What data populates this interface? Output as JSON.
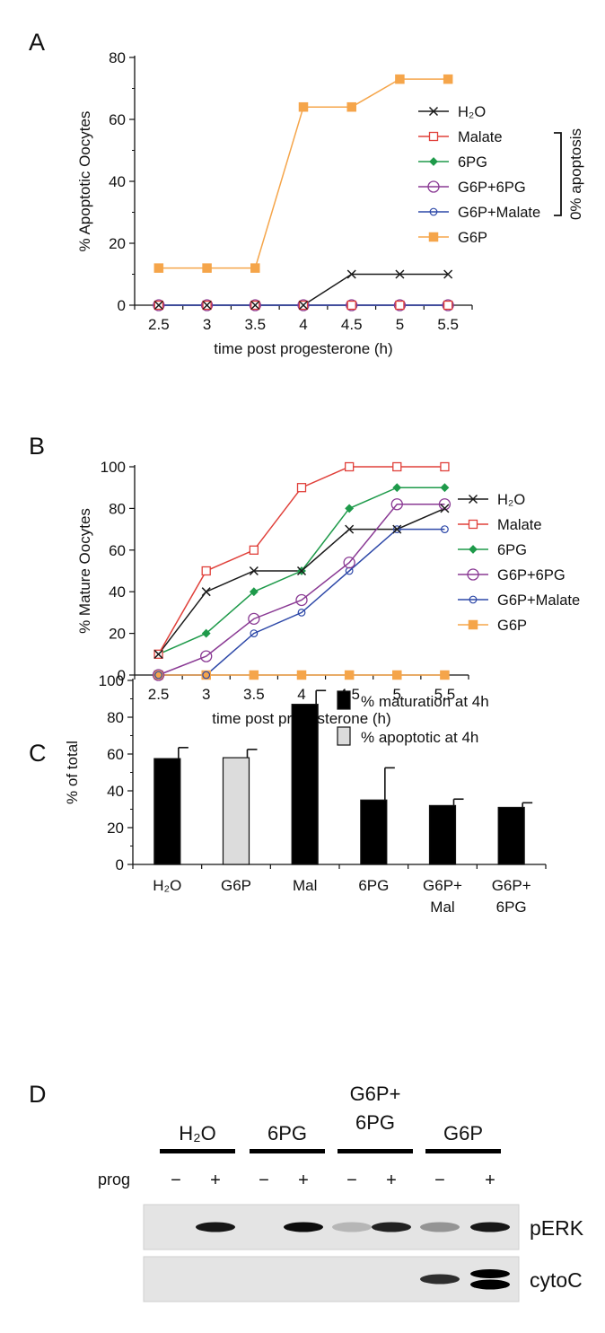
{
  "panels": {
    "A": "A",
    "B": "B",
    "C": "C",
    "D": "D"
  },
  "chart_data": [
    {
      "id": "A",
      "type": "line",
      "xlabel": "time post progesterone (h)",
      "ylabel": "% Apoptotic Oocytes",
      "x": [
        2.5,
        3,
        3.5,
        4,
        4.5,
        5,
        5.5
      ],
      "x_tick_labels": [
        "2.5",
        "3",
        "3.5",
        "4",
        "4.5",
        "5",
        "5.5"
      ],
      "ylim": [
        0,
        80
      ],
      "y_ticks": [
        0,
        20,
        40,
        60,
        80
      ],
      "series": [
        {
          "name": "H₂O",
          "color": "#1a1a1a",
          "marker": "x",
          "values": [
            0,
            0,
            0,
            0,
            10,
            10,
            10
          ]
        },
        {
          "name": "Malate",
          "color": "#e0403a",
          "marker": "square-open",
          "values": [
            0,
            0,
            0,
            0,
            0,
            0,
            0
          ]
        },
        {
          "name": "6PG",
          "color": "#1e9a4a",
          "marker": "diamond-filled",
          "values": [
            0,
            0,
            0,
            0,
            0,
            0,
            0
          ]
        },
        {
          "name": "G6P+6PG",
          "color": "#8a3a94",
          "marker": "circle-open",
          "values": [
            0,
            0,
            0,
            0,
            0,
            0,
            0
          ]
        },
        {
          "name": "G6P+Malate",
          "color": "#2d48a8",
          "marker": "circle-open-small",
          "values": [
            0,
            0,
            0,
            0,
            0,
            0,
            0
          ]
        },
        {
          "name": "G6P",
          "color": "#f5a54a",
          "marker": "square-filled",
          "values": [
            12,
            12,
            12,
            64,
            64,
            73,
            73
          ]
        }
      ],
      "bracket_label": "0% apoptosis",
      "legend": "right"
    },
    {
      "id": "B",
      "type": "line",
      "xlabel": "time post progesterone (h)",
      "ylabel": "% Mature Oocytes",
      "x": [
        2.5,
        3,
        3.5,
        4,
        4.5,
        5,
        5.5
      ],
      "x_tick_labels": [
        "2.5",
        "3",
        "3.5",
        "4",
        "4.5",
        "5",
        "5.5"
      ],
      "ylim": [
        0,
        100
      ],
      "y_ticks": [
        0,
        20,
        40,
        60,
        80,
        100
      ],
      "series": [
        {
          "name": "H₂O",
          "color": "#1a1a1a",
          "marker": "x",
          "values": [
            10,
            40,
            50,
            50,
            70,
            70,
            80
          ]
        },
        {
          "name": "Malate",
          "color": "#e0403a",
          "marker": "square-open",
          "values": [
            10,
            50,
            60,
            90,
            100,
            100,
            100
          ]
        },
        {
          "name": "6PG",
          "color": "#1e9a4a",
          "marker": "diamond-filled",
          "values": [
            10,
            20,
            40,
            50,
            80,
            90,
            90
          ]
        },
        {
          "name": "G6P+6PG",
          "color": "#8a3a94",
          "marker": "circle-open",
          "values": [
            0,
            9,
            27,
            36,
            54,
            82,
            82
          ]
        },
        {
          "name": "G6P+Malate",
          "color": "#2d48a8",
          "marker": "circle-open-small",
          "values": [
            0,
            0,
            20,
            30,
            50,
            70,
            70
          ]
        },
        {
          "name": "G6P",
          "color": "#f5a54a",
          "marker": "square-filled",
          "values": [
            0,
            0,
            0,
            0,
            0,
            0,
            0
          ]
        }
      ],
      "legend": "right"
    },
    {
      "id": "C",
      "type": "bar",
      "ylabel": "% of total",
      "ylim": [
        0,
        100
      ],
      "y_ticks": [
        0,
        20,
        40,
        60,
        80,
        100
      ],
      "categories": [
        {
          "line1": "H₂O",
          "line2": ""
        },
        {
          "line1": "G6P",
          "line2": ""
        },
        {
          "line1": "Mal",
          "line2": ""
        },
        {
          "line1": "6PG",
          "line2": ""
        },
        {
          "line1": "G6P+",
          "line2": "Mal"
        },
        {
          "line1": "G6P+",
          "line2": "6PG"
        }
      ],
      "bars": [
        {
          "value": 57.5,
          "error": 6,
          "kind": "maturation"
        },
        {
          "value": 58,
          "error": 4.5,
          "kind": "apoptotic"
        },
        {
          "value": 87,
          "error": 7.5,
          "kind": "maturation"
        },
        {
          "value": 35,
          "error": 17.5,
          "kind": "maturation"
        },
        {
          "value": 32,
          "error": 3.5,
          "kind": "maturation"
        },
        {
          "value": 31,
          "error": 2.5,
          "kind": "maturation"
        }
      ],
      "legend_items": [
        {
          "kind": "maturation",
          "label": "% maturation at 4h",
          "color": "#000000"
        },
        {
          "kind": "apoptotic",
          "label": "% apoptotic at 4h",
          "color": "#dcdcdc"
        }
      ],
      "legend": "top-right"
    },
    {
      "id": "D",
      "type": "table",
      "groups": [
        "H₂O",
        "6PG",
        "G6P+\n6PG",
        "G6P"
      ],
      "row_label": "prog",
      "lanes": [
        "−",
        "+",
        "−",
        "+",
        "−",
        "+",
        "−",
        "+"
      ],
      "blots": [
        {
          "label": "pERK",
          "band_intensity": [
            0,
            0.9,
            0,
            0.95,
            0.2,
            0.85,
            0.35,
            0.9
          ]
        },
        {
          "label": "cytoC",
          "band_intensity": [
            0,
            0,
            0,
            0,
            0,
            0,
            0.8,
            1.0
          ]
        }
      ]
    }
  ]
}
